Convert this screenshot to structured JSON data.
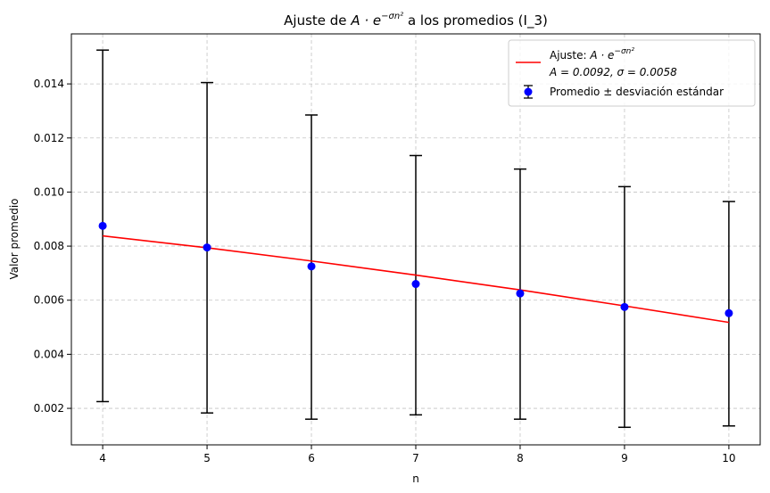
{
  "chart_data": {
    "type": "scatter",
    "title_prefix": "Ajuste de ",
    "title_math_base": "A · e",
    "title_math_exp": "−σn²",
    "title_suffix": " a los promedios (I_3)",
    "xlabel": "n",
    "ylabel": "Valor promedio",
    "xlim": [
      3.7,
      10.3
    ],
    "ylim": [
      0.00065,
      0.01585
    ],
    "x_ticks": [
      4,
      5,
      6,
      7,
      8,
      9,
      10
    ],
    "y_ticks": [
      0.002,
      0.004,
      0.006,
      0.008,
      0.01,
      0.012,
      0.014
    ],
    "y_tick_labels": [
      "0.002",
      "0.004",
      "0.006",
      "0.008",
      "0.010",
      "0.012",
      "0.014"
    ],
    "grid": true,
    "legend_position": "top-right",
    "series": [
      {
        "kind": "errorbar",
        "legend_label": "Promedio ± desviación estándar",
        "color": "#0000ff",
        "errcolor": "#000000",
        "x": [
          4,
          5,
          6,
          7,
          8,
          9,
          10
        ],
        "y": [
          0.00875,
          0.00795,
          0.00725,
          0.0066,
          0.00625,
          0.00575,
          0.00552
        ],
        "ylow": [
          0.00225,
          0.00183,
          0.0016,
          0.00176,
          0.0016,
          0.0013,
          0.00135
        ],
        "yhigh": [
          0.01525,
          0.01405,
          0.01285,
          0.01135,
          0.01085,
          0.0102,
          0.00965
        ]
      },
      {
        "kind": "line",
        "legend_prefix": "Ajuste: ",
        "legend_math_base": "A · e",
        "legend_math_exp": "−σn²",
        "legend_line2": "A = 0.0092, σ = 0.0058",
        "color": "#ff0000",
        "x": [
          4,
          5,
          6,
          7,
          8,
          9,
          10
        ],
        "y": [
          0.00838,
          0.00794,
          0.00745,
          0.00693,
          0.00638,
          0.00579,
          0.00518
        ]
      }
    ]
  }
}
